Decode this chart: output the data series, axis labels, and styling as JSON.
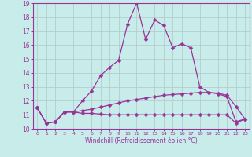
{
  "xlabel": "Windchill (Refroidissement éolien,°C)",
  "background_color": "#c8ecea",
  "line_color": "#993399",
  "grid_color": "#b0c8c8",
  "xlim": [
    0,
    23
  ],
  "ylim": [
    10,
    19
  ],
  "xticks": [
    0,
    1,
    2,
    3,
    4,
    5,
    6,
    7,
    8,
    9,
    10,
    11,
    12,
    13,
    14,
    15,
    16,
    17,
    18,
    19,
    20,
    21,
    22,
    23
  ],
  "yticks": [
    10,
    11,
    12,
    13,
    14,
    15,
    16,
    17,
    18,
    19
  ],
  "line1_x": [
    0,
    1,
    2,
    3,
    4,
    5,
    6,
    7,
    8,
    9,
    10,
    11,
    12,
    13,
    14,
    15,
    16,
    17,
    18,
    19,
    20,
    21,
    22,
    23
  ],
  "line1_y": [
    11.5,
    10.4,
    10.5,
    11.2,
    11.2,
    11.1,
    11.1,
    11.05,
    11.0,
    11.0,
    11.0,
    11.0,
    11.0,
    11.0,
    11.0,
    11.0,
    11.0,
    11.0,
    11.0,
    11.0,
    11.0,
    11.0,
    10.4,
    10.7
  ],
  "line2_x": [
    0,
    1,
    2,
    3,
    4,
    5,
    6,
    7,
    8,
    9,
    10,
    11,
    12,
    13,
    14,
    15,
    16,
    17,
    18,
    19,
    20,
    21,
    22,
    23
  ],
  "line2_y": [
    11.5,
    10.4,
    10.5,
    11.2,
    11.2,
    11.3,
    11.4,
    11.55,
    11.7,
    11.85,
    12.0,
    12.1,
    12.2,
    12.3,
    12.4,
    12.45,
    12.5,
    12.55,
    12.6,
    12.6,
    12.55,
    12.4,
    11.6,
    10.7
  ],
  "line3_x": [
    0,
    1,
    2,
    3,
    4,
    5,
    6,
    7,
    8,
    9,
    10,
    11,
    12,
    13,
    14,
    15,
    16,
    17,
    18,
    19,
    20,
    21,
    22,
    23
  ],
  "line3_y": [
    11.5,
    10.4,
    10.5,
    11.2,
    11.2,
    12.0,
    12.7,
    13.8,
    14.4,
    14.9,
    17.5,
    19.0,
    16.4,
    17.8,
    17.4,
    15.8,
    16.1,
    15.8,
    13.0,
    12.6,
    12.5,
    12.3,
    10.5,
    10.7
  ]
}
